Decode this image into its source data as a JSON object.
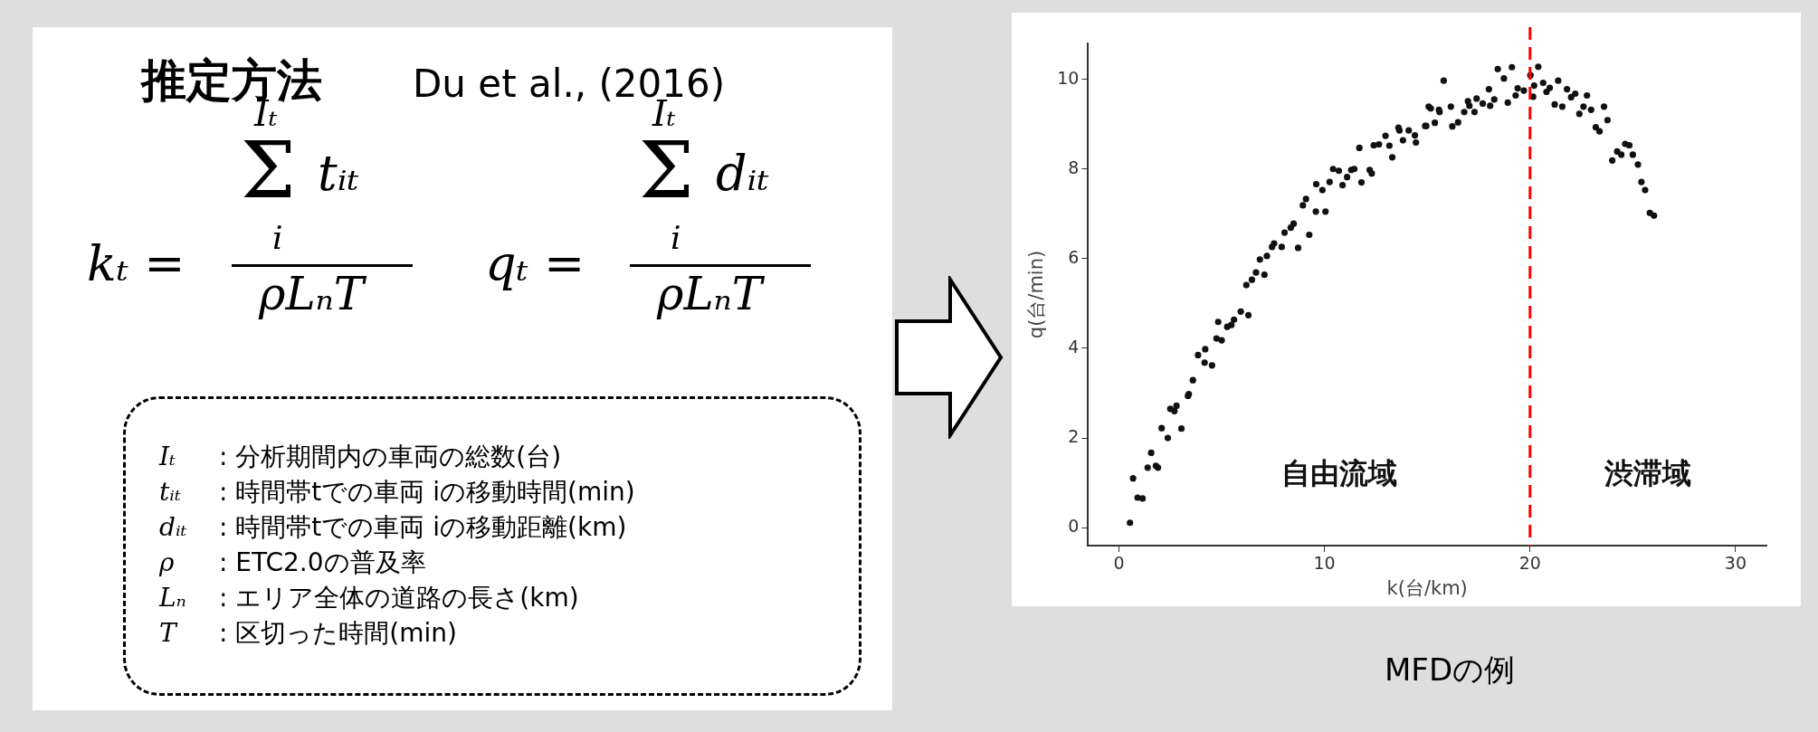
{
  "chart_data": [
    {
      "type": "other",
      "title": "推定方法",
      "subtitle": "Du et al., (2016)",
      "annotations": [
        "kₜ =",
        "Iₜ",
        "Σ",
        "tᵢₜ",
        "i",
        "ρLₙT",
        "qₜ =",
        "Iₜ",
        "Σ",
        "dᵢₜ",
        "i",
        "ρLₙT",
        "Iₜ",
        ": 分析期間内の車両の総数(台)",
        "tᵢₜ",
        ": 時間帯tでの車両 iの移動時間(min)",
        "dᵢₜ",
        ": 時間帯tでの車両 iの移動距離(km)",
        "ρ",
        ":  ETC2.0の普及率",
        "Lₙ",
        ": エリア全体の道路の長さ(km)",
        "T",
        ": 区切った時間(min)"
      ]
    },
    {
      "type": "scatter",
      "xlabel": "k(台/km)",
      "ylabel": "q(台/min)",
      "xlim": [
        -1.5,
        31.5
      ],
      "ylim": [
        -0.4,
        10.8
      ],
      "xticks": [
        0,
        10,
        20,
        30
      ],
      "yticks": [
        0,
        2,
        4,
        6,
        8,
        10
      ],
      "grid": false,
      "legend": false,
      "marker": "circle",
      "ref_lines": [
        {
          "axis": "x",
          "value": 20,
          "color": "#ff0000",
          "line_style": "dashed"
        }
      ],
      "annotations": [
        "自由流域",
        "渋滞域",
        "MFDの例"
      ],
      "series": [
        {
          "color": "#111111",
          "x": [
            0.54,
            0.69,
            0.91,
            1.15,
            1.4,
            1.57,
            1.8,
            1.9,
            2.08,
            2.38,
            2.5,
            2.7,
            2.8,
            3.04,
            3.36,
            3.4,
            3.6,
            3.85,
            4.17,
            4.2,
            4.53,
            4.75,
            4.83,
            5.0,
            5.27,
            5.47,
            5.6,
            5.93,
            6.2,
            6.3,
            6.47,
            6.67,
            6.86,
            7.08,
            7.2,
            7.45,
            7.55,
            7.92,
            8.06,
            8.36,
            8.5,
            8.72,
            8.95,
            9.1,
            9.26,
            9.6,
            9.58,
            9.9,
            10.05,
            10.25,
            10.42,
            10.7,
            10.88,
            11.1,
            11.3,
            11.45,
            11.7,
            11.8,
            12.2,
            12.3,
            12.4,
            12.65,
            12.97,
            13.16,
            13.3,
            13.6,
            13.65,
            13.82,
            14.1,
            14.4,
            14.45,
            14.9,
            14.95,
            15.07,
            15.17,
            15.37,
            15.57,
            15.6,
            15.8,
            16.15,
            16.22,
            16.5,
            16.8,
            16.98,
            17.05,
            17.3,
            17.4,
            17.7,
            18.0,
            18.06,
            18.26,
            18.43,
            18.73,
            18.92,
            19.12,
            19.3,
            19.4,
            19.7,
            20.02,
            20.15,
            20.2,
            20.4,
            20.64,
            20.8,
            20.96,
            21.2,
            21.37,
            21.57,
            21.8,
            22.0,
            22.2,
            22.4,
            22.6,
            22.77,
            22.97,
            23.2,
            23.38,
            23.6,
            23.77,
            24.0,
            24.24,
            24.44,
            24.63,
            24.83,
            25.0,
            25.25,
            25.42,
            25.6,
            25.83,
            26.03
          ],
          "values": [
            0.11,
            1.1,
            0.67,
            0.65,
            1.34,
            1.67,
            1.38,
            1.34,
            2.22,
            2.0,
            2.65,
            2.6,
            2.72,
            2.21,
            2.94,
            2.98,
            3.29,
            3.85,
            3.68,
            3.98,
            3.62,
            4.22,
            4.59,
            4.18,
            4.48,
            4.52,
            4.64,
            4.82,
            5.41,
            4.74,
            5.53,
            5.69,
            5.98,
            5.64,
            6.06,
            6.26,
            6.34,
            6.26,
            6.58,
            6.69,
            6.78,
            6.24,
            7.19,
            7.33,
            6.53,
            7.66,
            7.05,
            7.53,
            7.05,
            7.71,
            8.0,
            7.96,
            7.64,
            7.82,
            7.98,
            8.0,
            8.47,
            7.7,
            7.98,
            7.9,
            8.53,
            8.55,
            8.74,
            8.52,
            8.26,
            8.92,
            8.86,
            8.64,
            8.86,
            8.75,
            8.59,
            8.96,
            8.96,
            9.39,
            9.35,
            9.03,
            9.32,
            9.27,
            9.97,
            9.39,
            8.95,
            9.04,
            9.27,
            9.51,
            9.41,
            9.27,
            9.57,
            9.46,
            9.78,
            9.41,
            9.55,
            10.23,
            10.02,
            9.48,
            10.27,
            9.64,
            9.8,
            9.75,
            10.09,
            9.61,
            9.86,
            10.28,
            9.92,
            9.72,
            9.81,
            9.44,
            9.97,
            9.39,
            9.78,
            9.6,
            9.68,
            9.23,
            9.39,
            9.64,
            9.32,
            8.93,
            8.84,
            9.39,
            9.09,
            8.19,
            8.39,
            8.32,
            8.56,
            8.53,
            8.32,
            8.1,
            7.71,
            7.53,
            7.02,
            6.96
          ]
        }
      ]
    }
  ]
}
